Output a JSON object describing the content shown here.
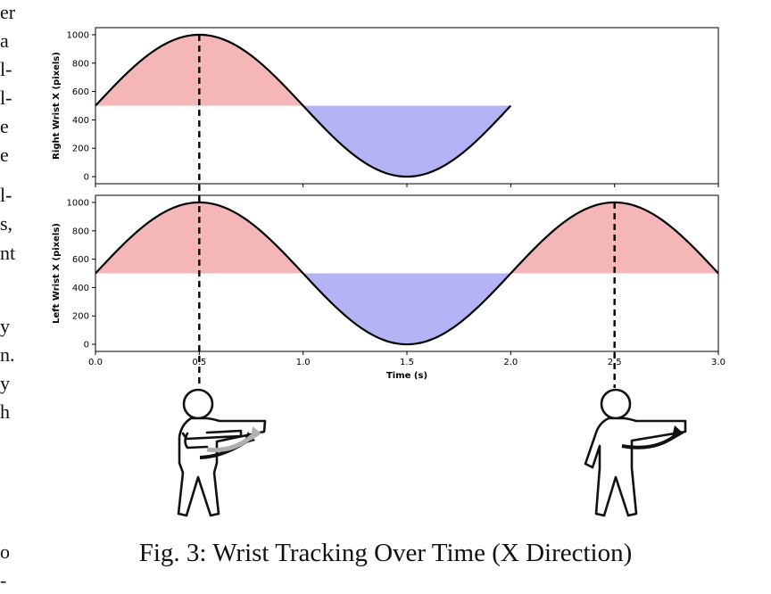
{
  "chart_data": [
    {
      "type": "area",
      "ylabel": "Right Wrist X (pixels)",
      "xlabel": "",
      "xlim": [
        0.0,
        3.0
      ],
      "ylim": [
        -50,
        1050
      ],
      "yticks": [
        0,
        200,
        400,
        600,
        800,
        1000
      ],
      "xticks": [
        0.0,
        0.5,
        1.0,
        1.5,
        2.0,
        2.5,
        3.0
      ],
      "xtick_labels_shown": false,
      "baseline": 500,
      "x_start": 0.0,
      "x_end": 2.0,
      "series": [
        {
          "function": "500 + 500*sin(pi*t)",
          "values_at_xticks": [
            500,
            1000,
            500,
            0,
            500
          ]
        }
      ],
      "fill_above_color": "#f4b6b6",
      "fill_below_color": "#b3b3f5",
      "markers": [
        0.5
      ],
      "grid": false
    },
    {
      "type": "area",
      "ylabel": "Left Wrist X (pixels)",
      "xlabel": "Time (s)",
      "xlim": [
        0.0,
        3.0
      ],
      "ylim": [
        -50,
        1050
      ],
      "yticks": [
        0,
        200,
        400,
        600,
        800,
        1000
      ],
      "xticks": [
        0.0,
        0.5,
        1.0,
        1.5,
        2.0,
        2.5,
        3.0
      ],
      "xtick_labels": [
        "0.0",
        "0.5",
        "1.0",
        "1.5",
        "2.0",
        "2.5",
        "3.0"
      ],
      "xtick_labels_shown": true,
      "baseline": 500,
      "x_start": 0.0,
      "x_end": 3.0,
      "series": [
        {
          "function": "500 + 500*sin(pi*t)",
          "values_at_xticks": [
            500,
            1000,
            500,
            0,
            500,
            1000,
            500
          ]
        }
      ],
      "fill_above_color": "#f4b6b6",
      "fill_below_color": "#b3b3f5",
      "markers": [
        0.5,
        2.5
      ],
      "grid": false
    }
  ],
  "caption": "Fig. 3: Wrist Tracking Over Time (X Direction)",
  "page_fragments": {
    "left": [
      "er",
      "a",
      "l-",
      "l-",
      "e",
      "e",
      "l-",
      "s,",
      "nt",
      "y",
      "n.",
      "y",
      "h",
      "o",
      "-"
    ]
  },
  "icons": {
    "figure_left": "person-pointing-with-arm-motion-icon",
    "figure_right": "person-pointing-with-arm-motion-icon"
  },
  "colors": {
    "line": "#000000",
    "positive_fill": "#f4b6b6",
    "negative_fill": "#b3b3f5",
    "motion_arrow_dark": "#111111",
    "motion_arrow_light": "#b0b0b0"
  }
}
